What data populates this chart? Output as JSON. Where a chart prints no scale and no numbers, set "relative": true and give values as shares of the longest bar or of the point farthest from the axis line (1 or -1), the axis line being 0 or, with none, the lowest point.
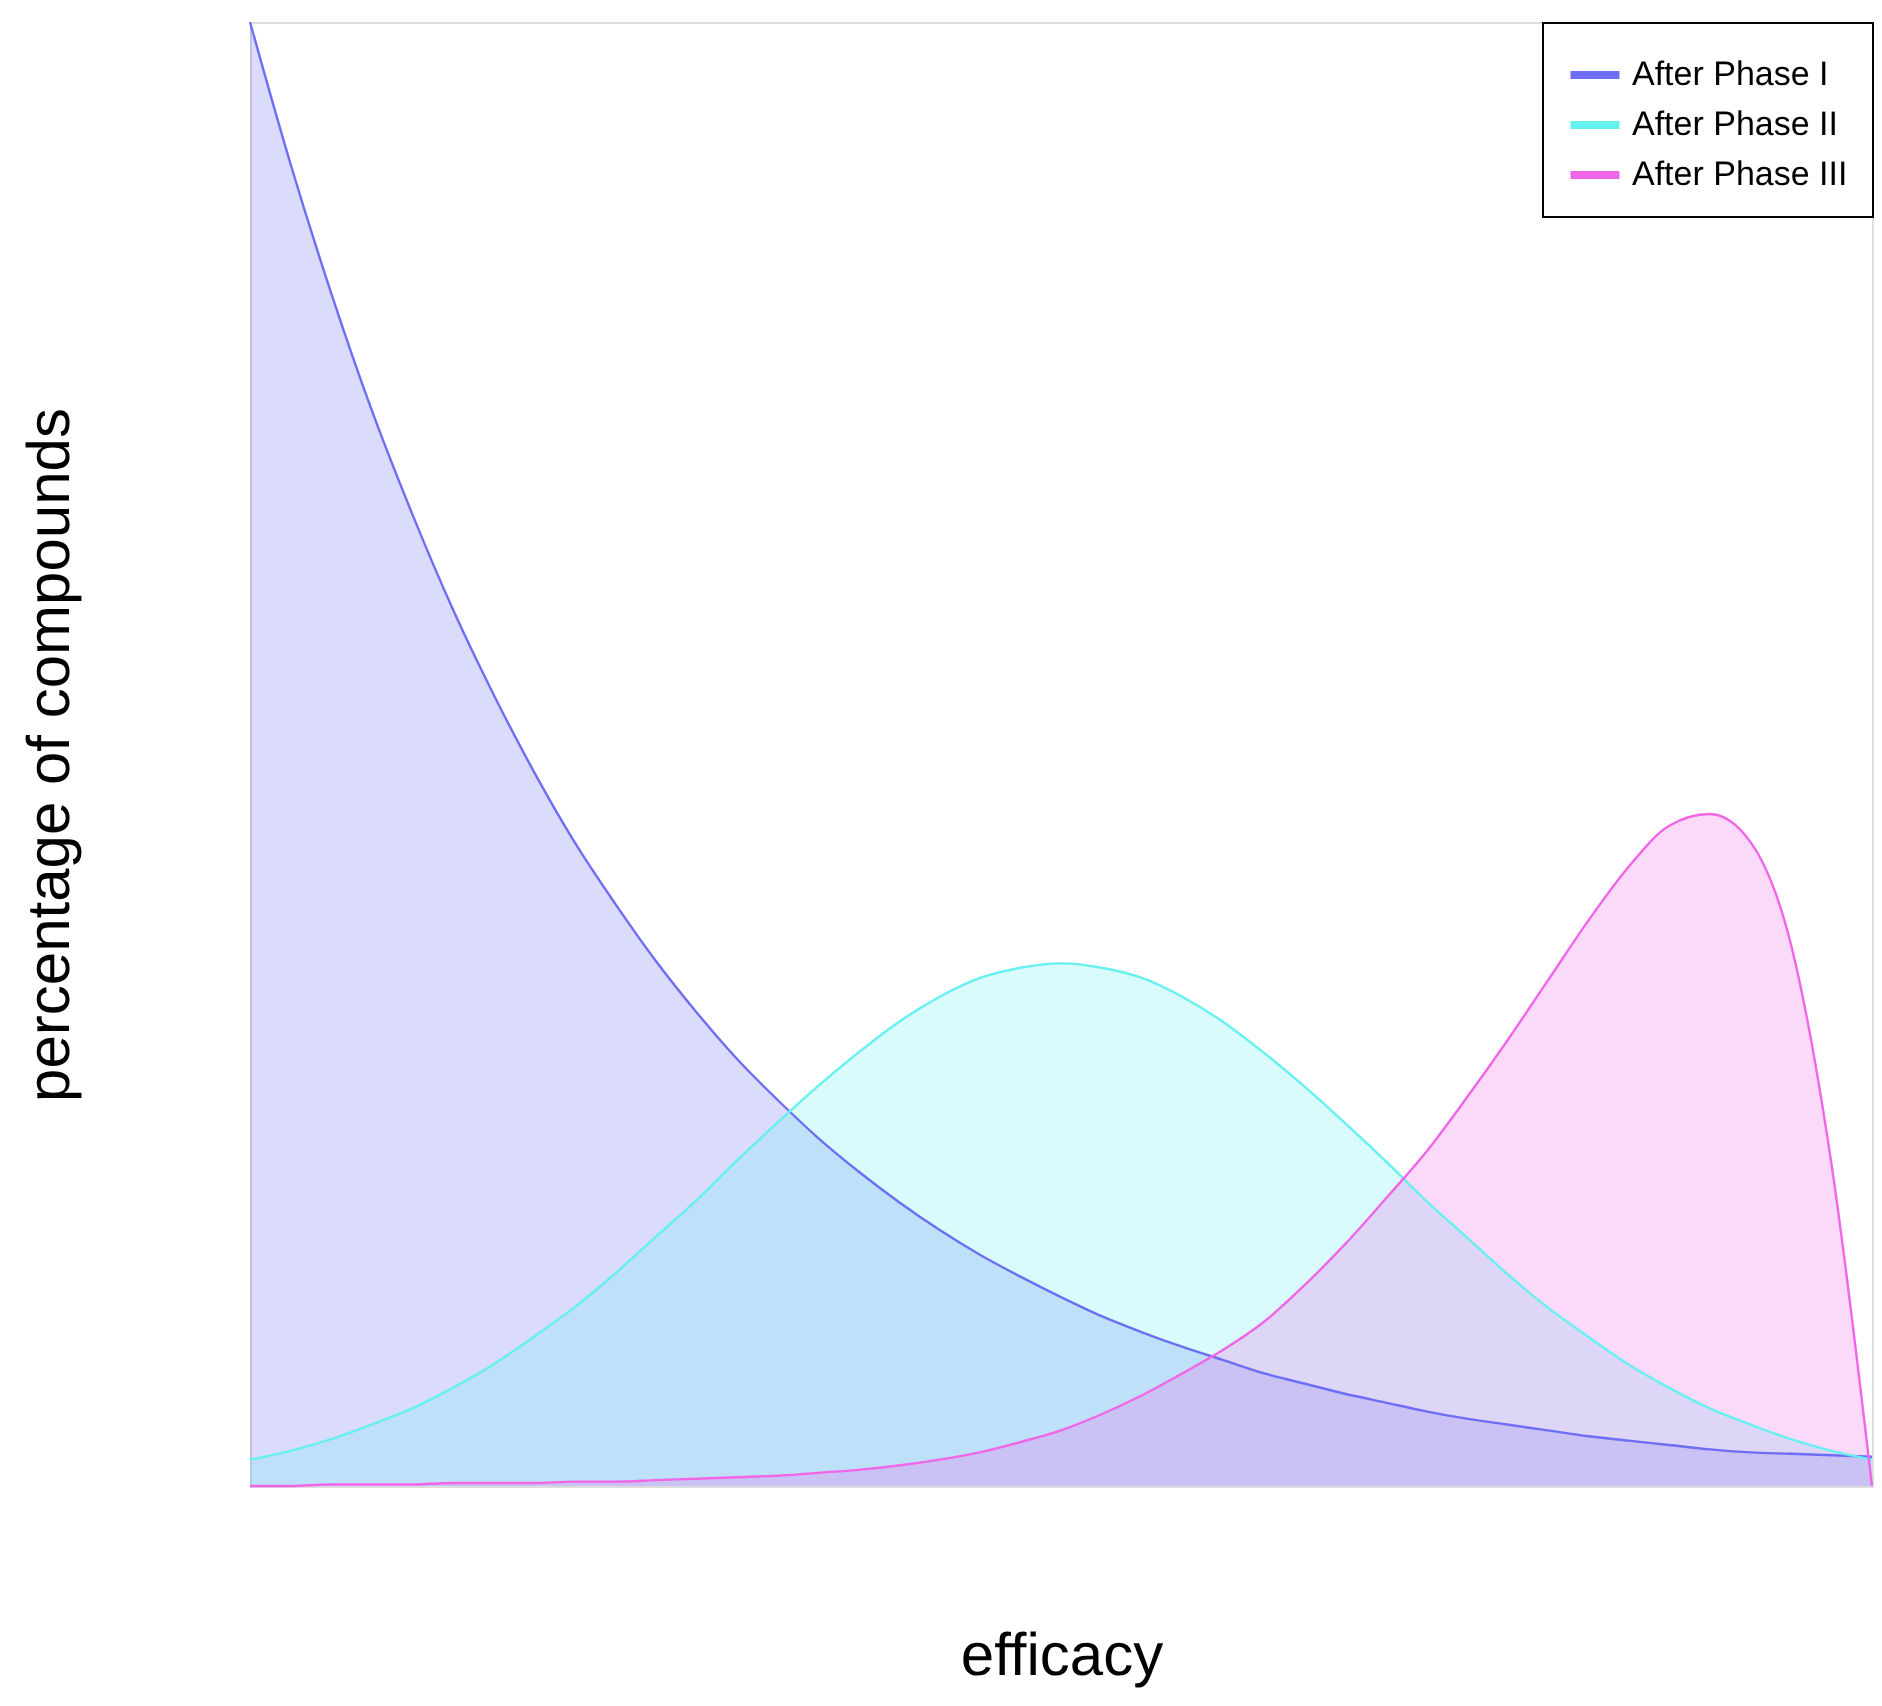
{
  "chart_data": {
    "type": "area",
    "relative": true,
    "xlabel": "efficacy",
    "ylabel": "percentage of compounds",
    "grid": false,
    "legend": "top right",
    "tick_labels": false,
    "categories": [
      null,
      null,
      null,
      null,
      null,
      null,
      null,
      null,
      null,
      null,
      null,
      null,
      null,
      null,
      null,
      null,
      null,
      null,
      null,
      null,
      null,
      null,
      null,
      null,
      null,
      null,
      null,
      null,
      null,
      null,
      null,
      null,
      null,
      null,
      null,
      null,
      null,
      null,
      null,
      null,
      null
    ],
    "series": [
      {
        "name": "After Phase I",
        "color": "#6e6ef5",
        "values": [
          1,
          0.903,
          0.815,
          0.735,
          0.664,
          0.599,
          0.541,
          0.488,
          0.44,
          0.398,
          0.359,
          0.324,
          0.292,
          0.264,
          0.238,
          0.215,
          0.194,
          0.175,
          0.158,
          0.143,
          0.129,
          0.116,
          0.105,
          0.095,
          0.086,
          0.077,
          0.07,
          0.063,
          0.057,
          0.051,
          0.046,
          0.042,
          0.038,
          0.034,
          0.031,
          0.028,
          0.025,
          0.023,
          0.022,
          0.021,
          0.02
        ]
      },
      {
        "name": "After Phase II",
        "color": "#66f0f0",
        "values": [
          0.018,
          0.024,
          0.032,
          0.042,
          0.053,
          0.067,
          0.083,
          0.102,
          0.122,
          0.145,
          0.17,
          0.195,
          0.222,
          0.248,
          0.273,
          0.296,
          0.317,
          0.334,
          0.347,
          0.354,
          0.357,
          0.354,
          0.347,
          0.334,
          0.317,
          0.296,
          0.273,
          0.248,
          0.222,
          0.195,
          0.17,
          0.145,
          0.122,
          0.102,
          0.083,
          0.067,
          0.053,
          0.042,
          0.032,
          0.024,
          0.018
        ]
      },
      {
        "name": "After Phase III",
        "color": "#f066e6",
        "values": [
          0,
          0,
          0.001,
          0.001,
          0.001,
          0.002,
          0.002,
          0.002,
          0.003,
          0.003,
          0.004,
          0.005,
          0.006,
          0.007,
          0.009,
          0.011,
          0.014,
          0.018,
          0.023,
          0.03,
          0.038,
          0.049,
          0.062,
          0.077,
          0.093,
          0.112,
          0.137,
          0.165,
          0.196,
          0.228,
          0.265,
          0.304,
          0.345,
          0.386,
          0.423,
          0.451,
          0.459,
          0.44,
          0.37,
          0.22,
          0
        ]
      }
    ]
  }
}
